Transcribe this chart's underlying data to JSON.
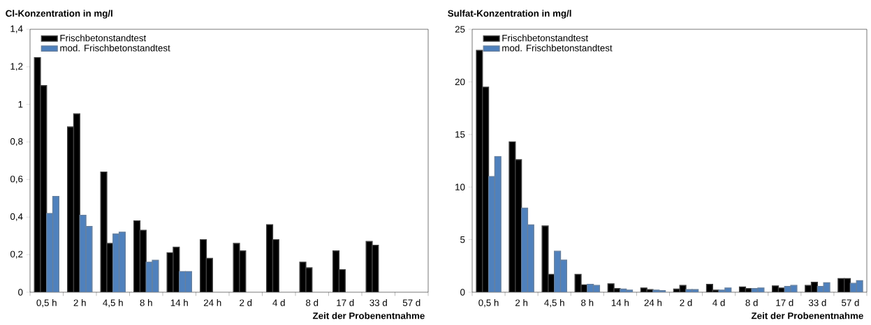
{
  "chart_data": [
    {
      "type": "bar",
      "title": "Cl-Konzentration in mg/l",
      "xlabel": "Zeit der Probenentnahme",
      "categories": [
        "0,5 h",
        "2 h",
        "4,5 h",
        "8 h",
        "14 h",
        "24 h",
        "2 d",
        "4 d",
        "8 d",
        "17 d",
        "33 d",
        "57 d"
      ],
      "ylim": [
        0,
        1.4
      ],
      "yticks": [
        0,
        {
          "value": 0.2,
          "label": "0,2"
        },
        {
          "value": 0.4,
          "label": "0,4"
        },
        {
          "value": 0.6,
          "label": "0,6"
        },
        {
          "value": 0.8,
          "label": "0,8"
        },
        1,
        {
          "value": 1.2,
          "label": "1,2"
        },
        {
          "value": 1.4,
          "label": "1,4"
        }
      ],
      "legend": "top left",
      "series": [
        {
          "name": "Frischbetonstandtest",
          "color": "#000000",
          "values": [
            1.25,
            0.88,
            0.64,
            0.38,
            0.21,
            0.28,
            0.26,
            0.36,
            0.16,
            0.22,
            0.27,
            null
          ]
        },
        {
          "color": "#000000",
          "values": [
            1.1,
            0.95,
            0.26,
            0.33,
            0.24,
            0.18,
            0.22,
            0.28,
            0.13,
            0.12,
            0.25,
            null
          ]
        },
        {
          "name": "mod. Frischbetonstandtest",
          "color": "#4f81bd",
          "values": [
            0.42,
            0.41,
            0.31,
            0.16,
            0.11,
            null,
            null,
            null,
            null,
            null,
            null,
            null
          ]
        },
        {
          "color": "#4f81bd",
          "values": [
            0.51,
            0.35,
            0.32,
            0.17,
            0.11,
            null,
            null,
            null,
            null,
            null,
            null,
            null
          ]
        }
      ]
    },
    {
      "type": "bar",
      "title": "Sulfat-Konzentration in mg/l",
      "xlabel": "Zeit der Probenentnahme",
      "categories": [
        "0,5 h",
        "2 h",
        "4,5 h",
        "8 h",
        "14 h",
        "24 h",
        "2 d",
        "4 d",
        "8 d",
        "17 d",
        "33 d",
        "57 d"
      ],
      "ylim": [
        0,
        25
      ],
      "yticks": [
        0,
        5,
        10,
        15,
        20,
        25
      ],
      "legend": "top left",
      "series": [
        {
          "name": "Frischbetonstandtest",
          "color": "#000000",
          "values": [
            23,
            14.3,
            6.3,
            1.7,
            0.8,
            0.4,
            0.3,
            0.75,
            0.5,
            0.6,
            0.65,
            1.3
          ]
        },
        {
          "color": "#000000",
          "values": [
            19.5,
            12.6,
            1.7,
            0.7,
            0.35,
            0.25,
            0.65,
            0.2,
            0.35,
            0.4,
            0.95,
            1.3
          ]
        },
        {
          "name": "mod. Frischbetonstandtest",
          "color": "#4f81bd",
          "values": [
            11,
            8.0,
            3.9,
            0.75,
            0.3,
            0.2,
            0.25,
            0.2,
            0.35,
            0.55,
            0.55,
            0.85
          ]
        },
        {
          "color": "#4f81bd",
          "values": [
            12.9,
            6.4,
            3.05,
            0.65,
            0.2,
            0.15,
            0.25,
            0.4,
            0.4,
            0.65,
            0.9,
            1.1
          ]
        }
      ]
    }
  ]
}
